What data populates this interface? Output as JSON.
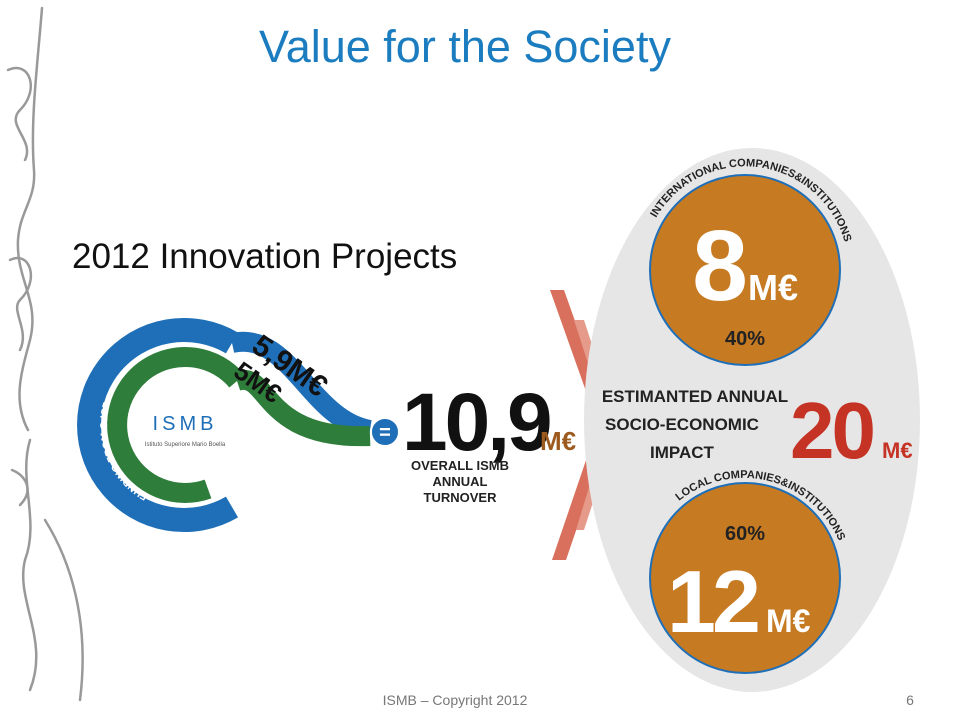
{
  "title": "Value for the Society",
  "subtitle": "2012 Innovation Projects",
  "funding": {
    "label": "FUNDING FROM CdSP",
    "logo_name": "ISMB",
    "logo_caption": "Istituto Superiore Mario Boella",
    "amount_1": "5,9M€",
    "amount_2": "5M€",
    "equals": "="
  },
  "turnover": {
    "amount": "10,9",
    "unit": "M€",
    "caption": [
      "OVERALL ISMB",
      "ANNUAL",
      "TURNOVER"
    ]
  },
  "impact": {
    "caption": [
      "ESTIMANTED ANNUAL",
      "SOCIO-ECONOMIC",
      "IMPACT"
    ],
    "amount": "20",
    "unit": "M€"
  },
  "international": {
    "label": "INTERNATIONAL COMPANIES&INSTITUTIONS",
    "amount": "8",
    "unit": "M€",
    "share": "40%"
  },
  "local": {
    "label": "LOCAL COMPANIES&INSTITUTIONS",
    "amount": "12",
    "unit": "M€",
    "share": "60%"
  },
  "footer": {
    "text": "ISMB – Copyright 2012",
    "page": "6"
  }
}
